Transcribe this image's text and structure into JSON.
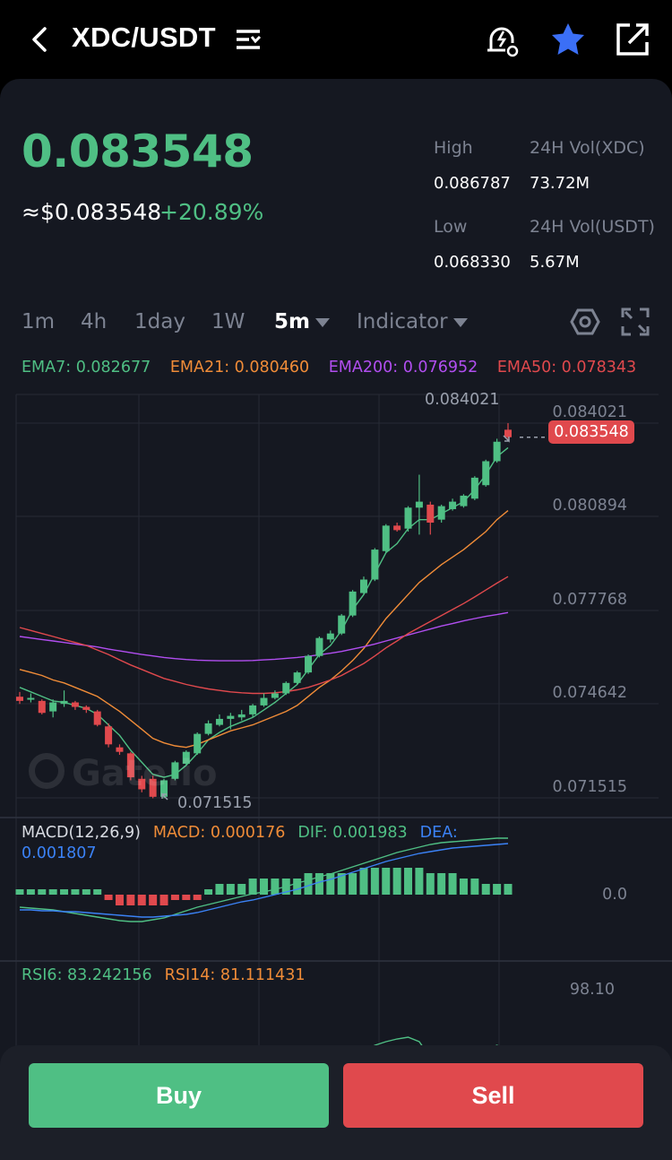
{
  "header": {
    "pair": "XDC/USDT"
  },
  "ticker": {
    "price": "0.083548",
    "fiat_price": "≈$0.083548",
    "change": "+20.89%",
    "high_label": "High",
    "high_value": "0.086787",
    "low_label": "Low",
    "low_value": "0.068330",
    "vol_base_label": "24H Vol(XDC)",
    "vol_base_value": "73.72M",
    "vol_quote_label": "24H Vol(USDT)",
    "vol_quote_value": "5.67M"
  },
  "timeframes": [
    "1m",
    "4h",
    "1day",
    "1W",
    "5m"
  ],
  "active_timeframe": "5m",
  "indicator_label": "Indicator",
  "ema": {
    "ema7": "EMA7: 0.082677",
    "ema21": "EMA21: 0.080460",
    "ema200": "EMA200: 0.076952",
    "ema50": "EMA50: 0.078343"
  },
  "macd": {
    "title": "MACD(12,26,9)",
    "macd": "MACD: 0.000176",
    "dif": "DIF: 0.001983",
    "dea": "DEA: 0.001807"
  },
  "rsi": {
    "rsi6": "RSI6: 83.242156",
    "rsi14": "RSI14: 81.111431"
  },
  "price_axis": [
    "0.084021",
    "0.080894",
    "0.077768",
    "0.074642",
    "0.071515"
  ],
  "macd_axis": "0.0",
  "rsi_axis": "98.10",
  "current_price_tag": "0.083548",
  "high_marker": "0.084021",
  "low_marker": "0.071515",
  "watermark": "Gate.io",
  "buttons": {
    "buy": "Buy",
    "sell": "Sell"
  },
  "colors": {
    "up": "#4fbf84",
    "down": "#e0494d",
    "background": "#151821",
    "ema7": "#4fbf84",
    "ema21": "#f08c38",
    "ema200": "#b14ef0",
    "ema50": "#e0494d",
    "dea": "#3b82f6"
  },
  "icons": [
    "back-chevron-icon",
    "pair-list-icon",
    "price-alert-icon",
    "favorite-star-icon",
    "share-icon",
    "chart-settings-icon",
    "fullscreen-icon"
  ],
  "chart_data": {
    "type": "candlestick",
    "y_range": [
      0.071515,
      0.084021
    ],
    "candles": [
      {
        "o": 0.07489,
        "c": 0.07475,
        "h": 0.07505,
        "l": 0.07465
      },
      {
        "o": 0.0748,
        "c": 0.07485,
        "h": 0.075,
        "l": 0.0747
      },
      {
        "o": 0.07475,
        "c": 0.07435,
        "h": 0.0748,
        "l": 0.0743
      },
      {
        "o": 0.0744,
        "c": 0.0747,
        "h": 0.0748,
        "l": 0.0742
      },
      {
        "o": 0.07465,
        "c": 0.07475,
        "h": 0.0751,
        "l": 0.07455
      },
      {
        "o": 0.0747,
        "c": 0.07455,
        "h": 0.07475,
        "l": 0.07445
      },
      {
        "o": 0.07455,
        "c": 0.07445,
        "h": 0.0746,
        "l": 0.07435
      },
      {
        "o": 0.0744,
        "c": 0.07395,
        "h": 0.07445,
        "l": 0.0739
      },
      {
        "o": 0.0739,
        "c": 0.0733,
        "h": 0.074,
        "l": 0.0732
      },
      {
        "o": 0.0732,
        "c": 0.07305,
        "h": 0.0733,
        "l": 0.07295
      },
      {
        "o": 0.073,
        "c": 0.0722,
        "h": 0.07305,
        "l": 0.0721
      },
      {
        "o": 0.07215,
        "c": 0.0718,
        "h": 0.07225,
        "l": 0.0717
      },
      {
        "o": 0.07215,
        "c": 0.07155,
        "h": 0.07225,
        "l": 0.0715
      },
      {
        "o": 0.07155,
        "c": 0.0721,
        "h": 0.07215,
        "l": 0.0715
      },
      {
        "o": 0.07215,
        "c": 0.0727,
        "h": 0.07275,
        "l": 0.0721
      },
      {
        "o": 0.07265,
        "c": 0.07305,
        "h": 0.0731,
        "l": 0.0726
      },
      {
        "o": 0.073,
        "c": 0.07365,
        "h": 0.0737,
        "l": 0.07295
      },
      {
        "o": 0.07365,
        "c": 0.074,
        "h": 0.0741,
        "l": 0.0736
      },
      {
        "o": 0.07395,
        "c": 0.07415,
        "h": 0.0743,
        "l": 0.0739
      },
      {
        "o": 0.07415,
        "c": 0.07425,
        "h": 0.07435,
        "l": 0.0738
      },
      {
        "o": 0.0742,
        "c": 0.0743,
        "h": 0.07445,
        "l": 0.0741
      },
      {
        "o": 0.0743,
        "c": 0.0746,
        "h": 0.07465,
        "l": 0.0742
      },
      {
        "o": 0.0746,
        "c": 0.07485,
        "h": 0.075,
        "l": 0.07455
      },
      {
        "o": 0.07485,
        "c": 0.075,
        "h": 0.0751,
        "l": 0.0748
      },
      {
        "o": 0.075,
        "c": 0.07535,
        "h": 0.0754,
        "l": 0.07495
      },
      {
        "o": 0.07535,
        "c": 0.0757,
        "h": 0.07575,
        "l": 0.0753
      },
      {
        "o": 0.0757,
        "c": 0.07625,
        "h": 0.0763,
        "l": 0.07565
      },
      {
        "o": 0.07625,
        "c": 0.07685,
        "h": 0.0769,
        "l": 0.0762
      },
      {
        "o": 0.0768,
        "c": 0.077,
        "h": 0.0771,
        "l": 0.0767
      },
      {
        "o": 0.077,
        "c": 0.0776,
        "h": 0.07765,
        "l": 0.07695
      },
      {
        "o": 0.0776,
        "c": 0.0784,
        "h": 0.07845,
        "l": 0.07755
      },
      {
        "o": 0.07835,
        "c": 0.0788,
        "h": 0.0789,
        "l": 0.0783
      },
      {
        "o": 0.0788,
        "c": 0.0798,
        "h": 0.07985,
        "l": 0.07875
      },
      {
        "o": 0.07975,
        "c": 0.0806,
        "h": 0.08065,
        "l": 0.0797
      },
      {
        "o": 0.0806,
        "c": 0.08045,
        "h": 0.0807,
        "l": 0.0804
      },
      {
        "o": 0.0805,
        "c": 0.0812,
        "h": 0.08125,
        "l": 0.0804
      },
      {
        "o": 0.0812,
        "c": 0.0814,
        "h": 0.0823,
        "l": 0.0803
      },
      {
        "o": 0.0813,
        "c": 0.0807,
        "h": 0.0814,
        "l": 0.0803
      },
      {
        "o": 0.0808,
        "c": 0.08125,
        "h": 0.0813,
        "l": 0.0807
      },
      {
        "o": 0.08115,
        "c": 0.0814,
        "h": 0.0815,
        "l": 0.0811
      },
      {
        "o": 0.08125,
        "c": 0.0816,
        "h": 0.08165,
        "l": 0.0812
      },
      {
        "o": 0.0815,
        "c": 0.0822,
        "h": 0.08225,
        "l": 0.08145
      },
      {
        "o": 0.08195,
        "c": 0.08275,
        "h": 0.0828,
        "l": 0.0819
      },
      {
        "o": 0.08275,
        "c": 0.0834,
        "h": 0.0835,
        "l": 0.0827
      },
      {
        "o": 0.0838,
        "c": 0.08355,
        "h": 0.08402,
        "l": 0.0835
      }
    ],
    "ema_series": [
      {
        "name": "EMA7",
        "values": [
          0.0752,
          0.07505,
          0.0749,
          0.07475,
          0.0747,
          0.0746,
          0.0745,
          0.0743,
          0.07395,
          0.0736,
          0.0731,
          0.0727,
          0.0723,
          0.0722,
          0.0723,
          0.0726,
          0.073,
          0.07345,
          0.0737,
          0.0739,
          0.07405,
          0.0742,
          0.07445,
          0.0747,
          0.075,
          0.0753,
          0.0758,
          0.0763,
          0.0766,
          0.0771,
          0.0778,
          0.0783,
          0.079,
          0.0797,
          0.08,
          0.0805,
          0.0808,
          0.0808,
          0.081,
          0.0812,
          0.0814,
          0.0818,
          0.0823,
          0.0829,
          0.0832
        ]
      },
      {
        "name": "EMA21",
        "values": [
          0.0758,
          0.0757,
          0.0756,
          0.07545,
          0.07535,
          0.0752,
          0.07505,
          0.0749,
          0.07465,
          0.0744,
          0.0741,
          0.0738,
          0.0735,
          0.07335,
          0.07325,
          0.0732,
          0.0733,
          0.07345,
          0.0736,
          0.07375,
          0.07385,
          0.07395,
          0.0741,
          0.07425,
          0.0744,
          0.0746,
          0.0749,
          0.0752,
          0.07545,
          0.07575,
          0.0761,
          0.0765,
          0.077,
          0.0775,
          0.0779,
          0.0783,
          0.0787,
          0.079,
          0.0793,
          0.07955,
          0.0798,
          0.0801,
          0.0804,
          0.0808,
          0.0811
        ]
      },
      {
        "name": "EMA200",
        "values": [
          0.0769,
          0.07685,
          0.0768,
          0.07675,
          0.0767,
          0.07665,
          0.0766,
          0.07655,
          0.07648,
          0.07642,
          0.07636,
          0.0763,
          0.07625,
          0.0762,
          0.07616,
          0.07613,
          0.07611,
          0.0761,
          0.07609,
          0.07609,
          0.07609,
          0.0761,
          0.07612,
          0.07614,
          0.07617,
          0.0762,
          0.07624,
          0.07629,
          0.07634,
          0.0764,
          0.07648,
          0.07656,
          0.07665,
          0.07675,
          0.07685,
          0.07695,
          0.07705,
          0.07715,
          0.07725,
          0.07733,
          0.07742,
          0.0775,
          0.07757,
          0.07763,
          0.0777
        ]
      },
      {
        "name": "EMA50",
        "values": [
          0.0772,
          0.0771,
          0.077,
          0.0769,
          0.0768,
          0.0767,
          0.0766,
          0.07645,
          0.0763,
          0.07612,
          0.07595,
          0.0758,
          0.07565,
          0.0755,
          0.0754,
          0.0753,
          0.07522,
          0.07515,
          0.0751,
          0.07505,
          0.07502,
          0.075,
          0.075,
          0.07502,
          0.07506,
          0.07512,
          0.0752,
          0.07532,
          0.07545,
          0.0756,
          0.0758,
          0.076,
          0.07625,
          0.07652,
          0.07675,
          0.077,
          0.0772,
          0.0774,
          0.0776,
          0.0778,
          0.078,
          0.07822,
          0.07845,
          0.07868,
          0.0789
        ]
      }
    ],
    "macd_hist": [
      0.0001,
      0.0001,
      0.0001,
      0.0001,
      0.0001,
      0.0001,
      0.0001,
      0.0001,
      -0.0001,
      -0.0002,
      -0.0002,
      -0.0002,
      -0.0002,
      -0.0002,
      -0.0001,
      -0.0001,
      -0.0001,
      0.0001,
      0.0002,
      0.0002,
      0.0002,
      0.0003,
      0.0003,
      0.0003,
      0.0003,
      0.0003,
      0.0004,
      0.0004,
      0.0004,
      0.0004,
      0.0004,
      0.0005,
      0.0005,
      0.0005,
      0.0005,
      0.0005,
      0.0005,
      0.0004,
      0.0004,
      0.0004,
      0.0003,
      0.0003,
      0.0002,
      0.0002,
      0.0002
    ]
  }
}
